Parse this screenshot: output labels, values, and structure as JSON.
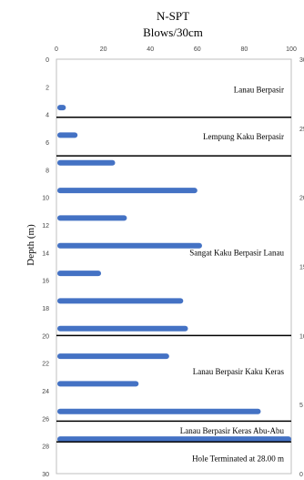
{
  "chart_data": {
    "type": "bar",
    "orientation": "horizontal",
    "title": "N-SPT",
    "subtitle": "Blows/30cm",
    "ylabel": "Depth (m)",
    "xlim": [
      0,
      100
    ],
    "ylim": [
      0,
      30
    ],
    "y_inverted": true,
    "x_ticks": [
      "0",
      "20",
      "40",
      "60",
      "80",
      "100"
    ],
    "y_ticks": [
      "0",
      "2",
      "4",
      "6",
      "8",
      "10",
      "12",
      "14",
      "16",
      "18",
      "20",
      "22",
      "24",
      "26",
      "28",
      "30"
    ],
    "right_ticks_visible": [
      "30",
      "25",
      "20",
      "15",
      "10",
      "5",
      "0"
    ],
    "bar_color": "#4472c4",
    "grid": false,
    "series": [
      {
        "depths": [
          3.5,
          5.5,
          7.5,
          9.5,
          11.5,
          13.5,
          15.5,
          17.5,
          19.5,
          21.5,
          23.5,
          25.5,
          27.5
        ],
        "values": [
          4,
          9,
          25,
          60,
          30,
          62,
          19,
          54,
          56,
          48,
          35,
          87,
          100
        ]
      }
    ],
    "layer_boundaries": [
      4.2,
      7.0,
      20.0,
      26.2,
      27.7
    ],
    "annotations": [
      {
        "text": "Lanau Berpasir",
        "depth": 2.2
      },
      {
        "text": "Lempung Kaku Berpasir",
        "depth": 5.6
      },
      {
        "text": "Sangat Kaku Berpasir Lanau",
        "depth": 14.0
      },
      {
        "text": "Lanau Berpasir Kaku Keras",
        "depth": 22.6
      },
      {
        "text": "Lanau Berpasir Keras Abu-Abu",
        "depth": 26.9
      },
      {
        "text": "Hole Terminated at 28.00 m",
        "depth": 28.9
      }
    ]
  }
}
